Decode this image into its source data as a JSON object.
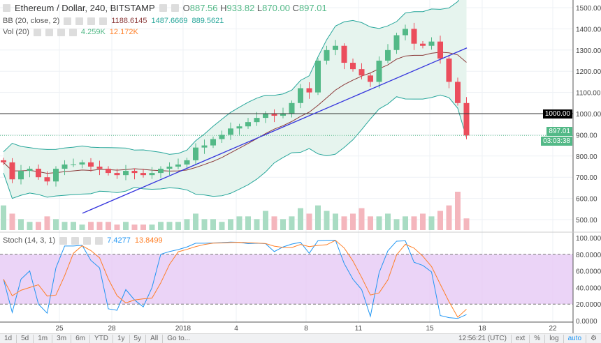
{
  "header": {
    "title": "Ethereum / Dollar, 240, BITSTAMP",
    "o_label": "O",
    "o": "887.56",
    "h_label": "H",
    "h": "933.82",
    "l_label": "L",
    "l": "870.00",
    "c_label": "C",
    "c": "897.01"
  },
  "bb": {
    "label": "BB (20, close, 2)",
    "basis": "1188.6145",
    "upper": "1487.6669",
    "lower": "889.5621"
  },
  "vol": {
    "label": "Vol (20)",
    "value": "4.259K",
    "ma": "12.172K"
  },
  "stoch": {
    "label": "Stoch (14, 3, 1)",
    "k": "7.4277",
    "d": "13.8499"
  },
  "price_tag": {
    "price": "897.01",
    "countdown": "03:03:38"
  },
  "level_tag": "1000.00",
  "colors": {
    "up": "#53b987",
    "down": "#eb4d5c",
    "bb_fill": "#e6f4ee",
    "bb_line": "#26a69a",
    "basis": "#8b3a3a",
    "trend": "#3333dd",
    "stoch_k": "#2196f3",
    "stoch_d": "#ff7f27",
    "stoch_bg": "#e6c9f5"
  },
  "toolbar": {
    "left": [
      "1d",
      "5d",
      "1m",
      "3m",
      "6m",
      "YTD",
      "1y",
      "5y",
      "All",
      "Go to..."
    ],
    "time": "12:56:21 (UTC)",
    "right": [
      "ext",
      "%",
      "log",
      "auto"
    ]
  },
  "chart_data": {
    "type": "candlestick",
    "interval": "240",
    "price_axis": {
      "ticks": [
        "1500.00",
        "1400.00",
        "1300.00",
        "1200.00",
        "1100.00",
        "1000.00",
        "900.00",
        "800.00",
        "700.00",
        "600.00",
        "500.00"
      ]
    },
    "stoch_axis": {
      "ticks": [
        "100.0000",
        "80.0000",
        "60.0000",
        "40.0000",
        "20.0000",
        "0.0000"
      ]
    },
    "x_ticks": [
      "25",
      "28",
      "2018",
      "4",
      "8",
      "11",
      "15",
      "18",
      "22"
    ],
    "closes_approx_12h": [
      770,
      690,
      730,
      740,
      700,
      680,
      740,
      760,
      760,
      770,
      750,
      740,
      720,
      710,
      730,
      720,
      710,
      720,
      740,
      750,
      760,
      780,
      840,
      850,
      880,
      900,
      930,
      940,
      960,
      980,
      1000,
      990,
      1000,
      1050,
      1120,
      1100,
      1250,
      1300,
      1320,
      1240,
      1210,
      1180,
      1150,
      1250,
      1300,
      1370,
      1400,
      1330,
      1320,
      1340,
      1260,
      1150,
      1050,
      897
    ],
    "volume_k_approx": [
      9,
      6,
      4,
      3,
      3,
      5,
      4,
      3,
      3,
      2,
      3,
      3,
      3,
      2,
      3,
      2,
      2,
      2,
      3,
      3,
      3,
      4,
      6,
      4,
      4,
      3,
      4,
      5,
      5,
      4,
      7,
      5,
      4,
      5,
      8,
      6,
      9,
      7,
      6,
      5,
      6,
      8,
      5,
      5,
      6,
      4,
      5,
      5,
      6,
      5,
      7,
      9,
      14,
      4.259
    ],
    "horizontal_level": 1000,
    "trendline": [
      {
        "date": "Dec 24",
        "price": 530
      },
      {
        "date": "Jan 17",
        "price": 1310
      }
    ]
  }
}
